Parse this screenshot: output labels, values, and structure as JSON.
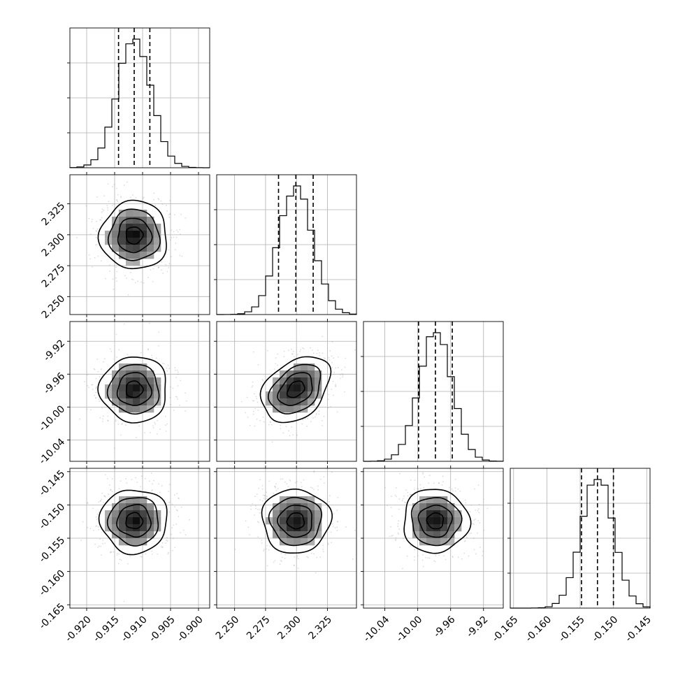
{
  "chart_data": {
    "type": "corner",
    "grid": true,
    "parameters": [
      {
        "index": 0,
        "range": [
          -0.923,
          -0.898
        ],
        "mean": -0.9115,
        "sigma": 0.003,
        "quantiles": [
          -0.9143,
          -0.9115,
          -0.9087
        ],
        "ticks": [
          "-0.920",
          "-0.915",
          "-0.910",
          "-0.905",
          "-0.900"
        ],
        "tick_values": [
          -0.92,
          -0.915,
          -0.91,
          -0.905,
          -0.9
        ]
      },
      {
        "index": 1,
        "range": [
          2.2355,
          2.3485
        ],
        "mean": 2.2995,
        "sigma": 0.0138,
        "quantiles": [
          2.2855,
          2.2995,
          2.3135
        ],
        "ticks": [
          "2.250",
          "2.275",
          "2.300",
          "2.325"
        ],
        "tick_values": [
          2.25,
          2.275,
          2.3,
          2.325
        ]
      },
      {
        "index": 2,
        "range": [
          -10.066,
          -9.896
        ],
        "mean": -9.9785,
        "sigma": 0.02,
        "quantiles": [
          -9.999,
          -9.9785,
          -9.958
        ],
        "ticks": [
          "-10.04",
          "-10.00",
          "-9.96",
          "-9.92"
        ],
        "tick_values": [
          -10.04,
          -10.0,
          -9.96,
          -9.92
        ]
      },
      {
        "index": 3,
        "range": [
          -0.1655,
          -0.1445
        ],
        "mean": -0.1524,
        "sigma": 0.0024,
        "quantiles": [
          -0.1548,
          -0.1524,
          -0.15
        ],
        "ticks": [
          "-0.165",
          "-0.160",
          "-0.155",
          "-0.150",
          "-0.145"
        ],
        "tick_values": [
          -0.165,
          -0.16,
          -0.155,
          -0.15,
          -0.145
        ]
      }
    ],
    "histogram_bins": 20,
    "contour_levels": [
      "0.5-sigma",
      "1-sigma",
      "1.5-sigma",
      "2-sigma"
    ],
    "colors": {
      "lines": "#000000",
      "grid": "#b0b0b0",
      "points": "#9a9a9a"
    }
  }
}
